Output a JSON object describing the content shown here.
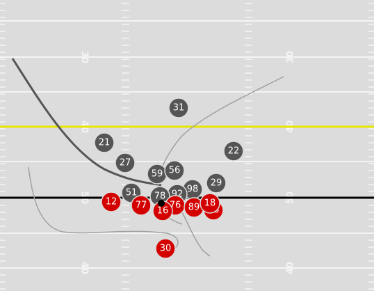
{
  "colors": {
    "field": "#dcdcdc",
    "first_down": "#e6e600",
    "line_of_scrimmage": "#000000",
    "offense": "#d40000",
    "defense": "#555555",
    "route_heavy": "#555555",
    "route_light": "#a0a0a0"
  },
  "yard_numbers": [
    {
      "text": "30",
      "side": "left"
    },
    {
      "text": "30",
      "side": "right"
    },
    {
      "text": "40",
      "side": "left"
    },
    {
      "text": "40",
      "side": "right"
    },
    {
      "text": "50",
      "side": "left"
    },
    {
      "text": "50",
      "side": "right"
    },
    {
      "text": "40",
      "side": "left"
    },
    {
      "text": "40",
      "side": "right"
    }
  ],
  "defense": [
    {
      "number": "31"
    },
    {
      "number": "21"
    },
    {
      "number": "22"
    },
    {
      "number": "27"
    },
    {
      "number": "59"
    },
    {
      "number": "56"
    },
    {
      "number": "29"
    },
    {
      "number": "51"
    },
    {
      "number": "98"
    },
    {
      "number": "92"
    },
    {
      "number": "78"
    }
  ],
  "offense": [
    {
      "number": "12"
    },
    {
      "number": "77"
    },
    {
      "number": "16"
    },
    {
      "number": "76"
    },
    {
      "number": "89"
    },
    {
      "number": "18"
    },
    {
      "number": "66"
    },
    {
      "number": "30"
    }
  ]
}
